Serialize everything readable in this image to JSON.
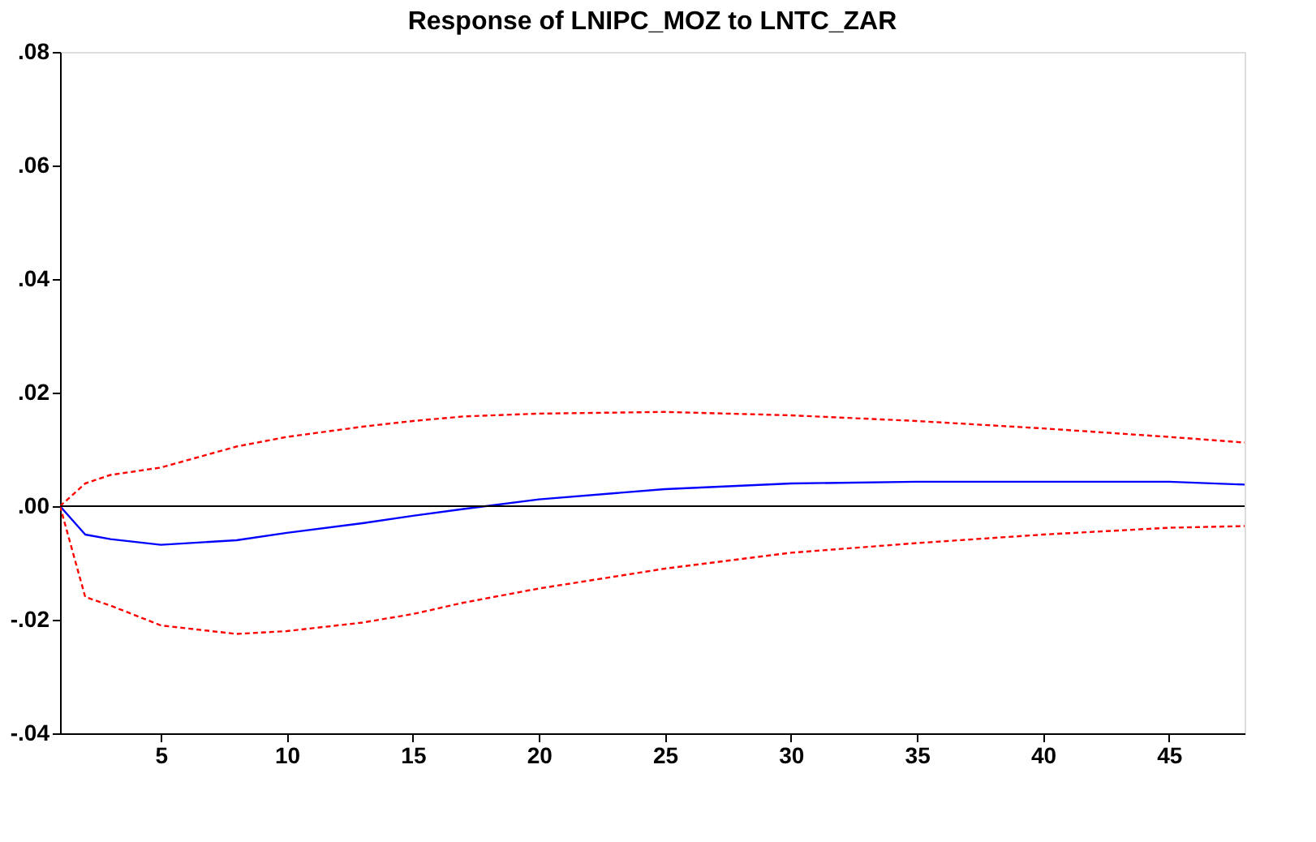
{
  "chart_data": {
    "type": "line",
    "title": "Response of LNIPC_MOZ to LNTC_ZAR",
    "x": [
      1,
      2,
      3,
      5,
      8,
      10,
      13,
      15,
      17,
      20,
      25,
      30,
      35,
      40,
      45,
      48
    ],
    "series": [
      {
        "color": "#0000ff",
        "line_style": "solid",
        "values": [
          0,
          -0.005,
          -0.0058,
          -0.0068,
          -0.006,
          -0.0047,
          -0.003,
          -0.0017,
          -0.0005,
          0.0012,
          0.003,
          0.004,
          0.0043,
          0.0043,
          0.0043,
          0.0038
        ]
      },
      {
        "color": "#ff0000",
        "line_style": "dashed",
        "values": [
          0,
          0.004,
          0.0055,
          0.0068,
          0.0105,
          0.0122,
          0.014,
          0.015,
          0.0158,
          0.0163,
          0.0166,
          0.016,
          0.015,
          0.0137,
          0.0122,
          0.0112
        ]
      },
      {
        "color": "#ff0000",
        "line_style": "dashed",
        "values": [
          0,
          -0.016,
          -0.0175,
          -0.021,
          -0.0225,
          -0.022,
          -0.0205,
          -0.019,
          -0.017,
          -0.0145,
          -0.011,
          -0.0082,
          -0.0065,
          -0.005,
          -0.0038,
          -0.0035
        ]
      }
    ],
    "xlim": [
      1,
      48
    ],
    "xticks": [
      5,
      10,
      15,
      20,
      25,
      30,
      35,
      40,
      45
    ],
    "ylim": [
      -0.04,
      0.08
    ],
    "yticks": [
      {
        "value": -0.04,
        "label": "-.04"
      },
      {
        "value": -0.02,
        "label": "-.02"
      },
      {
        "value": 0,
        "label": ".00"
      },
      {
        "value": 0.02,
        "label": ".02"
      },
      {
        "value": 0.04,
        "label": ".04"
      },
      {
        "value": 0.06,
        "label": ".06"
      },
      {
        "value": 0.08,
        "label": ".08"
      }
    ],
    "ref_lines": [
      {
        "axis": "y",
        "value": 0,
        "color": "#000000"
      }
    ],
    "grid": false,
    "marker": "none"
  }
}
